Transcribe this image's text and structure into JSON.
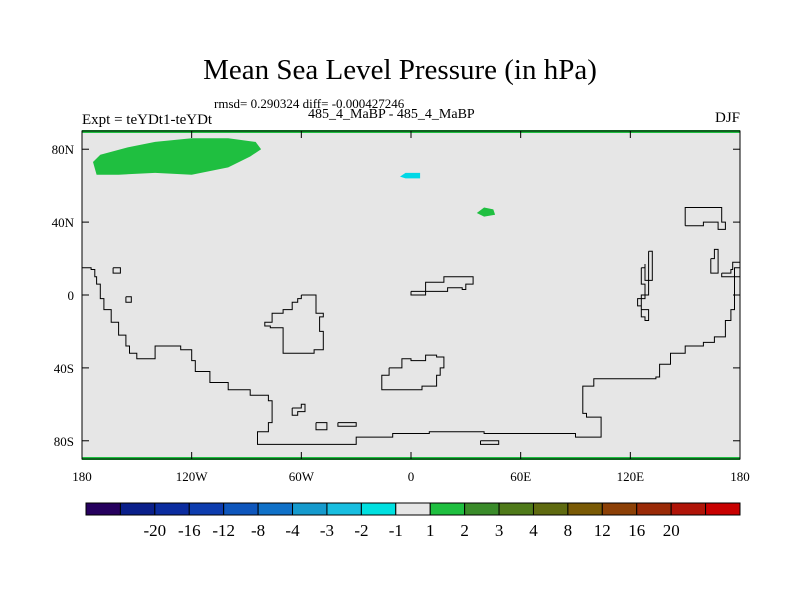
{
  "title": "Mean Sea Level Pressure (in hPa)",
  "stats_line": "rmsd= 0.290324 diff= -0.000427246",
  "case_label": "485_4_MaBP - 485_4_MaBP",
  "expt_label": "Expt = teYDt1-teYDt",
  "season_label": "DJF",
  "map": {
    "background_color": "#e6e6e6",
    "coast_color": "#000000",
    "lon_range": [
      -180,
      180
    ],
    "lat_range": [
      -90,
      90
    ],
    "x_ticks": [
      {
        "lon": -180,
        "label": "180"
      },
      {
        "lon": -120,
        "label": "120W"
      },
      {
        "lon": -60,
        "label": "60W"
      },
      {
        "lon": 0,
        "label": "0"
      },
      {
        "lon": 60,
        "label": "60E"
      },
      {
        "lon": 120,
        "label": "120E"
      },
      {
        "lon": 180,
        "label": "180"
      }
    ],
    "y_ticks": [
      {
        "lat": 80,
        "label": "80N"
      },
      {
        "lat": 40,
        "label": "40N"
      },
      {
        "lat": 0,
        "label": "0"
      },
      {
        "lat": -40,
        "label": "40S"
      },
      {
        "lat": -80,
        "label": "80S"
      }
    ],
    "anomaly_regions": [
      {
        "name": "north-pacific-green-blob",
        "value_bin": "1 to 2",
        "color": "#1fbf40",
        "points": [
          [
            -174,
            73
          ],
          [
            -170,
            77
          ],
          [
            -155,
            81
          ],
          [
            -140,
            84
          ],
          [
            -120,
            86
          ],
          [
            -100,
            86
          ],
          [
            -85,
            84
          ],
          [
            -82,
            80
          ],
          [
            -88,
            76
          ],
          [
            -100,
            70
          ],
          [
            -120,
            66
          ],
          [
            -140,
            67
          ],
          [
            -160,
            66
          ],
          [
            -172,
            66
          ]
        ]
      },
      {
        "name": "arctic-cyan-spot",
        "value_bin": "-2 to -1",
        "color": "#00d8e6",
        "points": [
          [
            -6,
            65
          ],
          [
            -3,
            67
          ],
          [
            5,
            67
          ],
          [
            5,
            64
          ],
          [
            -3,
            64
          ]
        ]
      },
      {
        "name": "eurasia-green-spot",
        "value_bin": "1 to 2",
        "color": "#1fbf40",
        "points": [
          [
            36,
            45
          ],
          [
            40,
            48
          ],
          [
            45,
            47
          ],
          [
            46,
            44
          ],
          [
            40,
            43
          ]
        ]
      }
    ],
    "coastlines": [
      [
        [
          -180,
          15
        ],
        [
          -175,
          14
        ],
        [
          -173,
          10
        ],
        [
          -172,
          6
        ],
        [
          -170,
          3
        ],
        [
          -170,
          -2
        ],
        [
          -168,
          -8
        ],
        [
          -164,
          -15
        ],
        [
          -160,
          -22
        ],
        [
          -156,
          -28
        ],
        [
          -154,
          -32
        ],
        [
          -150,
          -35
        ],
        [
          -145,
          -35
        ],
        [
          -140,
          -28
        ],
        [
          -130,
          -28
        ],
        [
          -126,
          -30
        ],
        [
          -120,
          -36
        ],
        [
          -118,
          -42
        ],
        [
          -110,
          -48
        ],
        [
          -100,
          -52
        ],
        [
          -88,
          -55
        ],
        [
          -78,
          -58
        ],
        [
          -76,
          -64
        ],
        [
          -76,
          -70
        ],
        [
          -78,
          -75
        ],
        [
          -84,
          -78
        ],
        [
          -84,
          -82
        ],
        [
          -70,
          -82
        ],
        [
          -40,
          -82
        ],
        [
          -30,
          -81
        ],
        [
          -30,
          -78
        ],
        [
          -10,
          -76
        ],
        [
          10,
          -75
        ],
        [
          40,
          -76
        ],
        [
          60,
          -76
        ],
        [
          90,
          -78
        ],
        [
          100,
          -78
        ],
        [
          104,
          -75
        ],
        [
          104,
          -67
        ],
        [
          96,
          -65
        ],
        [
          94,
          -50
        ],
        [
          100,
          -46
        ],
        [
          110,
          -46
        ],
        [
          126,
          -46
        ],
        [
          134,
          -45
        ],
        [
          136,
          -38
        ],
        [
          142,
          -32
        ],
        [
          150,
          -28
        ],
        [
          160,
          -26
        ],
        [
          166,
          -23
        ],
        [
          172,
          -22
        ],
        [
          172,
          -14
        ],
        [
          175,
          -8
        ],
        [
          177,
          0
        ],
        [
          177,
          15
        ],
        [
          180,
          18
        ]
      ],
      [
        [
          -163,
          15
        ],
        [
          -159,
          15
        ],
        [
          -159,
          12
        ],
        [
          -163,
          12
        ],
        [
          -163,
          15
        ]
      ],
      [
        [
          -156,
          -1
        ],
        [
          -153,
          -1
        ],
        [
          -153,
          -4
        ],
        [
          -156,
          -4
        ],
        [
          -156,
          -1
        ]
      ],
      [
        [
          -60,
          0
        ],
        [
          -54,
          0
        ],
        [
          -52,
          -3
        ],
        [
          -52,
          -10
        ],
        [
          -48,
          -12
        ],
        [
          -50,
          -20
        ],
        [
          -48,
          -30
        ],
        [
          -53,
          -32
        ],
        [
          -58,
          -32
        ],
        [
          -65,
          -32
        ],
        [
          -70,
          -30
        ],
        [
          -70,
          -18
        ],
        [
          -77,
          -17
        ],
        [
          -80,
          -15
        ],
        [
          -76,
          -10
        ],
        [
          -70,
          -8
        ],
        [
          -65,
          -4
        ],
        [
          -62,
          -2
        ],
        [
          -60,
          0
        ]
      ],
      [
        [
          -65,
          -62
        ],
        [
          -60,
          -60
        ],
        [
          -58,
          -64
        ],
        [
          -62,
          -66
        ],
        [
          -65,
          -64
        ],
        [
          -65,
          -62
        ]
      ],
      [
        [
          -52,
          -70
        ],
        [
          -46,
          -70
        ],
        [
          -46,
          -74
        ],
        [
          -52,
          -74
        ],
        [
          -52,
          -70
        ]
      ],
      [
        [
          0,
          2
        ],
        [
          8,
          7
        ],
        [
          18,
          10
        ],
        [
          32,
          10
        ],
        [
          34,
          6
        ],
        [
          30,
          3
        ],
        [
          28,
          4
        ],
        [
          20,
          2
        ],
        [
          14,
          2
        ],
        [
          8,
          0
        ],
        [
          0,
          0
        ],
        [
          0,
          2
        ]
      ],
      [
        [
          -12,
          -40
        ],
        [
          -5,
          -35
        ],
        [
          0,
          -36
        ],
        [
          8,
          -33
        ],
        [
          14,
          -34
        ],
        [
          18,
          -40
        ],
        [
          16,
          -44
        ],
        [
          14,
          -50
        ],
        [
          6,
          -52
        ],
        [
          0,
          -52
        ],
        [
          -10,
          -52
        ],
        [
          -16,
          -48
        ],
        [
          -16,
          -44
        ],
        [
          -12,
          -40
        ]
      ],
      [
        [
          -40,
          -70
        ],
        [
          -30,
          -70
        ],
        [
          -30,
          -72
        ],
        [
          -40,
          -72
        ],
        [
          -40,
          -70
        ]
      ],
      [
        [
          38,
          -80
        ],
        [
          48,
          -80
        ],
        [
          48,
          -82
        ],
        [
          38,
          -82
        ],
        [
          38,
          -80
        ]
      ],
      [
        [
          150,
          38
        ],
        [
          160,
          40
        ],
        [
          166,
          40
        ],
        [
          168,
          36
        ],
        [
          172,
          40
        ],
        [
          170,
          48
        ],
        [
          156,
          48
        ],
        [
          150,
          44
        ],
        [
          150,
          38
        ]
      ],
      [
        [
          126,
          15
        ],
        [
          128,
          17
        ],
        [
          128,
          8
        ],
        [
          130,
          0
        ],
        [
          126,
          -8
        ],
        [
          130,
          -10
        ],
        [
          130,
          -14
        ],
        [
          128,
          -12
        ],
        [
          126,
          -6
        ],
        [
          124,
          -2
        ],
        [
          128,
          6
        ],
        [
          126,
          15
        ]
      ],
      [
        [
          130,
          24
        ],
        [
          132,
          24
        ],
        [
          132,
          8
        ],
        [
          130,
          8
        ],
        [
          130,
          24
        ]
      ],
      [
        [
          164,
          20
        ],
        [
          166,
          20
        ],
        [
          166,
          25
        ],
        [
          168,
          25
        ],
        [
          168,
          12
        ],
        [
          166,
          12
        ],
        [
          164,
          20
        ]
      ],
      [
        [
          170,
          12
        ],
        [
          175,
          14
        ],
        [
          176,
          18
        ],
        [
          180,
          16
        ],
        [
          180,
          10
        ],
        [
          172,
          10
        ],
        [
          170,
          12
        ]
      ]
    ]
  },
  "colorbar": {
    "colors": [
      "#26005e",
      "#0a1f8a",
      "#0b2c9f",
      "#0d3cae",
      "#0e56bc",
      "#1071c8",
      "#159acd",
      "#18bee0",
      "#00e0e0",
      "#e6e6e6",
      "#1fbf40",
      "#3a8b2a",
      "#4f7a1a",
      "#5f6a10",
      "#7a5a05",
      "#8c4006",
      "#9a2a07",
      "#b01408",
      "#c80000"
    ],
    "labels": [
      "-20",
      "-16",
      "-12",
      "-8",
      "-4",
      "-3",
      "-2",
      "-1",
      "1",
      "2",
      "3",
      "4",
      "8",
      "12",
      "16",
      "20"
    ]
  }
}
